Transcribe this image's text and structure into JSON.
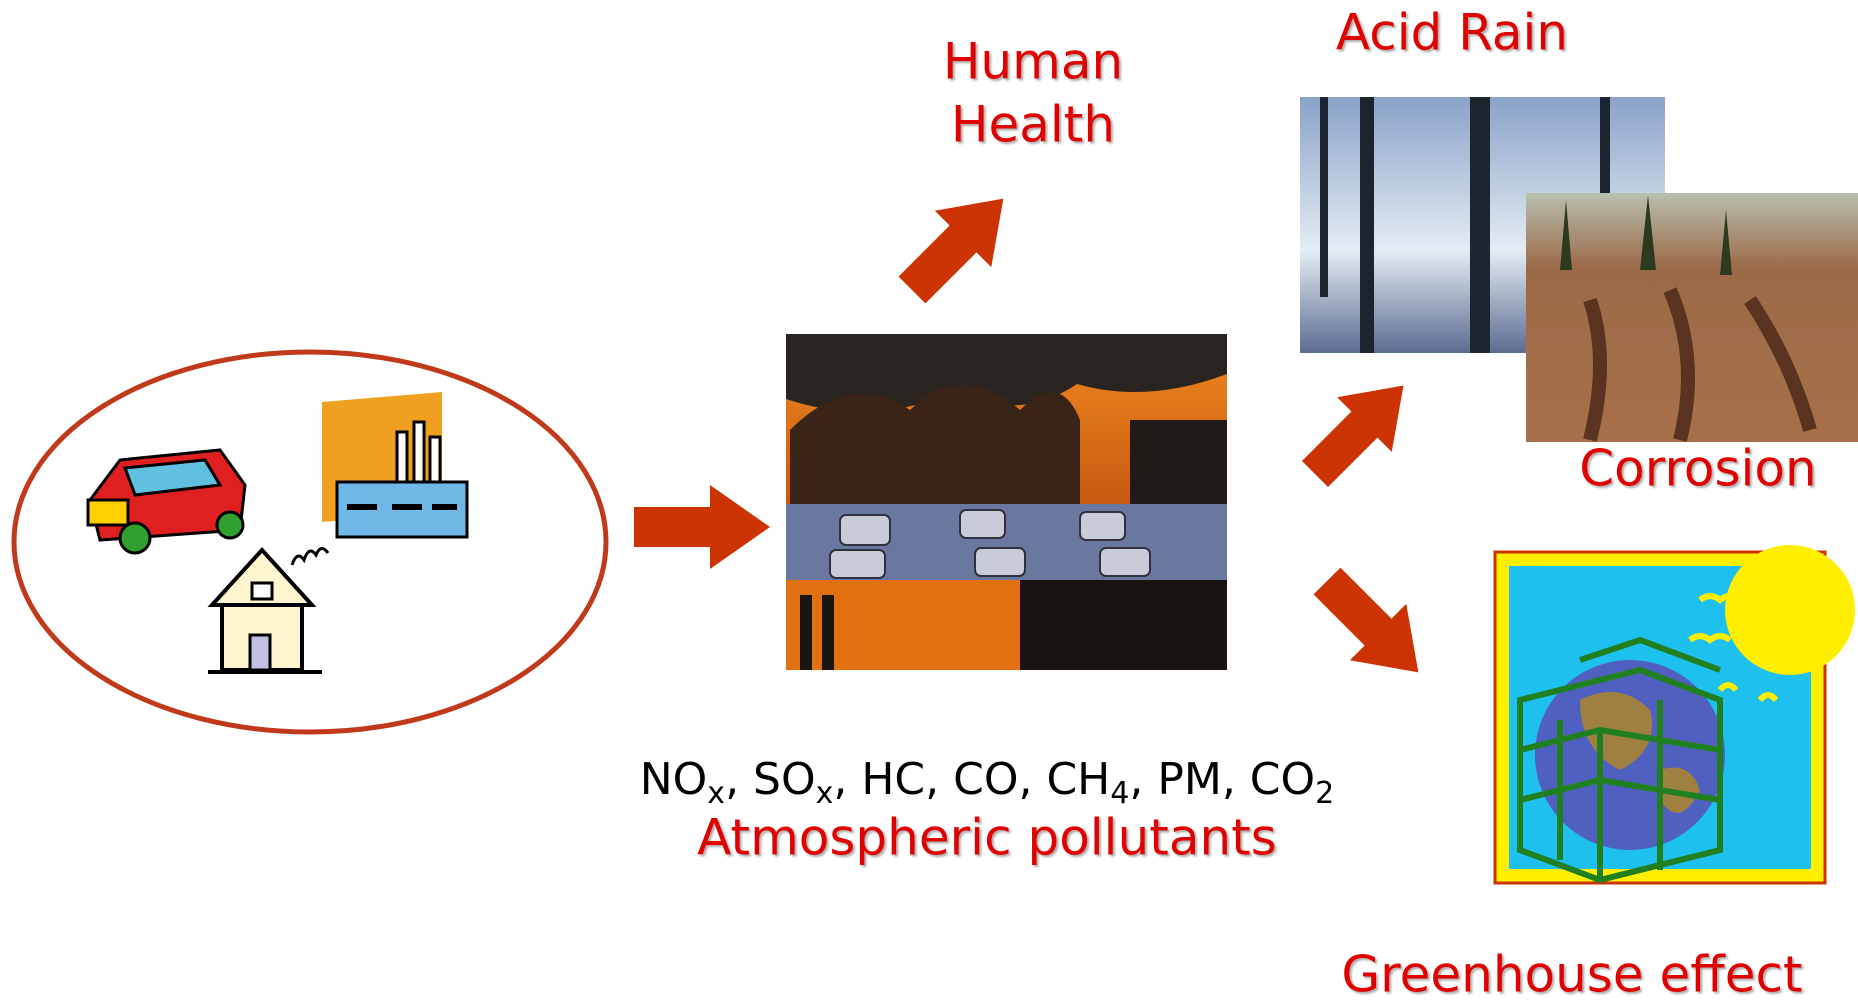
{
  "human_health": [
    "Human",
    "Health"
  ],
  "acid_rain": "Acid Rain",
  "corrosion": "Corrosion",
  "greenhouse": "Greenhouse effect",
  "formula": [
    {
      "text": "NO"
    },
    {
      "sub": "x"
    },
    {
      "text": ", SO"
    },
    {
      "sub": "x"
    },
    {
      "text": ", HC, CO, CH"
    },
    {
      "sub": "4"
    },
    {
      "text": ", PM, CO"
    },
    {
      "sub": "2"
    }
  ],
  "pollutants": "Atmospheric pollutants"
}
